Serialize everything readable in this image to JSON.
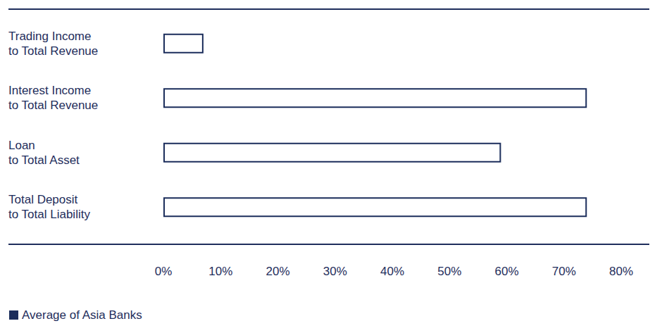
{
  "chart_data": {
    "type": "bar",
    "orientation": "horizontal",
    "categories": [
      "Trading Income\nto Total Revenue",
      "Interest Income\nto Total Revenue",
      "Loan\nto Total Asset",
      "Total Deposit\nto Total Liability"
    ],
    "series": [
      {
        "name": "Average of Asia Banks",
        "color": "#1b2d5b",
        "values": [
          7,
          74,
          59,
          74
        ]
      }
    ],
    "xlim": [
      0,
      80
    ],
    "xticks": [
      {
        "value": 0,
        "label": "0%"
      },
      {
        "value": 10,
        "label": "10%"
      },
      {
        "value": 20,
        "label": "20%"
      },
      {
        "value": 30,
        "label": "30%"
      },
      {
        "value": 40,
        "label": "40%"
      },
      {
        "value": 50,
        "label": "50%"
      },
      {
        "value": 60,
        "label": "60%"
      },
      {
        "value": 70,
        "label": "70%"
      },
      {
        "value": 80,
        "label": "80%"
      }
    ],
    "grid": false,
    "legend": "lower-left"
  }
}
